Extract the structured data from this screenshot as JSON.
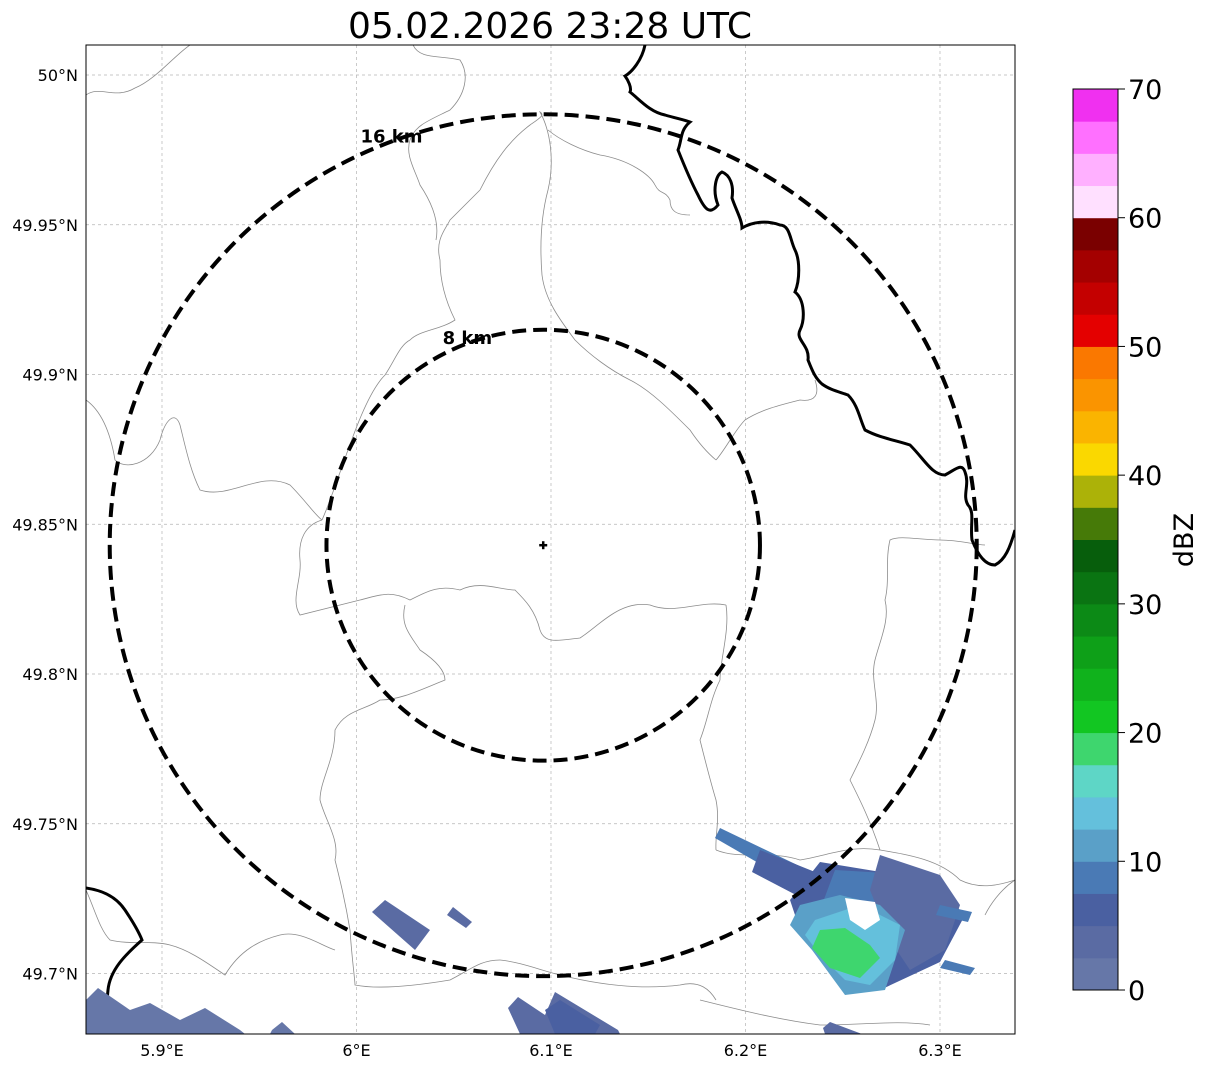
{
  "title": "05.02.2026 23:28 UTC",
  "map": {
    "lon_ticks": [
      {
        "value": 5.9,
        "label": "5.9°E"
      },
      {
        "value": 6.0,
        "label": "6°E"
      },
      {
        "value": 6.1,
        "label": "6.1°E"
      },
      {
        "value": 6.2,
        "label": "6.2°E"
      },
      {
        "value": 6.3,
        "label": "6.3°E"
      }
    ],
    "lat_ticks": [
      {
        "value": 50.0,
        "label": "50°N"
      },
      {
        "value": 49.95,
        "label": "49.95°N"
      },
      {
        "value": 49.9,
        "label": "49.9°N"
      },
      {
        "value": 49.85,
        "label": "49.85°N"
      },
      {
        "value": 49.8,
        "label": "49.8°N"
      },
      {
        "value": 49.75,
        "label": "49.75°N"
      },
      {
        "value": 49.7,
        "label": "49.7°N"
      }
    ],
    "gridlines": true,
    "radar_center": {
      "lon": 6.096,
      "lat": 49.843
    },
    "rings": [
      {
        "radius_km": 16,
        "label": "16 km"
      },
      {
        "radius_km": 8,
        "label": "8 km"
      }
    ]
  },
  "colorbar": {
    "label": "dBZ",
    "ticks": [
      "0",
      "10",
      "20",
      "30",
      "40",
      "50",
      "60",
      "70"
    ],
    "colors": [
      "#6677a8",
      "#5a6ba3",
      "#4a60a1",
      "#4a7ab5",
      "#5aa0c8",
      "#64c0dc",
      "#5ed6c6",
      "#3ed66e",
      "#12c622",
      "#10b21c",
      "#0ea018",
      "#0c8a16",
      "#0a7412",
      "#075e0c",
      "#467a08",
      "#acb208",
      "#fad800",
      "#fab400",
      "#fa9400",
      "#fa7800",
      "#e40000",
      "#c40000",
      "#a40000",
      "#7a0000",
      "#ffe0ff",
      "#ffb0ff",
      "#ff70ff",
      "#f030f0"
    ]
  },
  "echoes": [
    {
      "name": "southeast-cell",
      "dbz_max": 18
    },
    {
      "name": "southwest-band",
      "dbz_max": 5
    },
    {
      "name": "south-center-band",
      "dbz_max": 5
    },
    {
      "name": "small-west-cell",
      "dbz_max": 4
    }
  ]
}
